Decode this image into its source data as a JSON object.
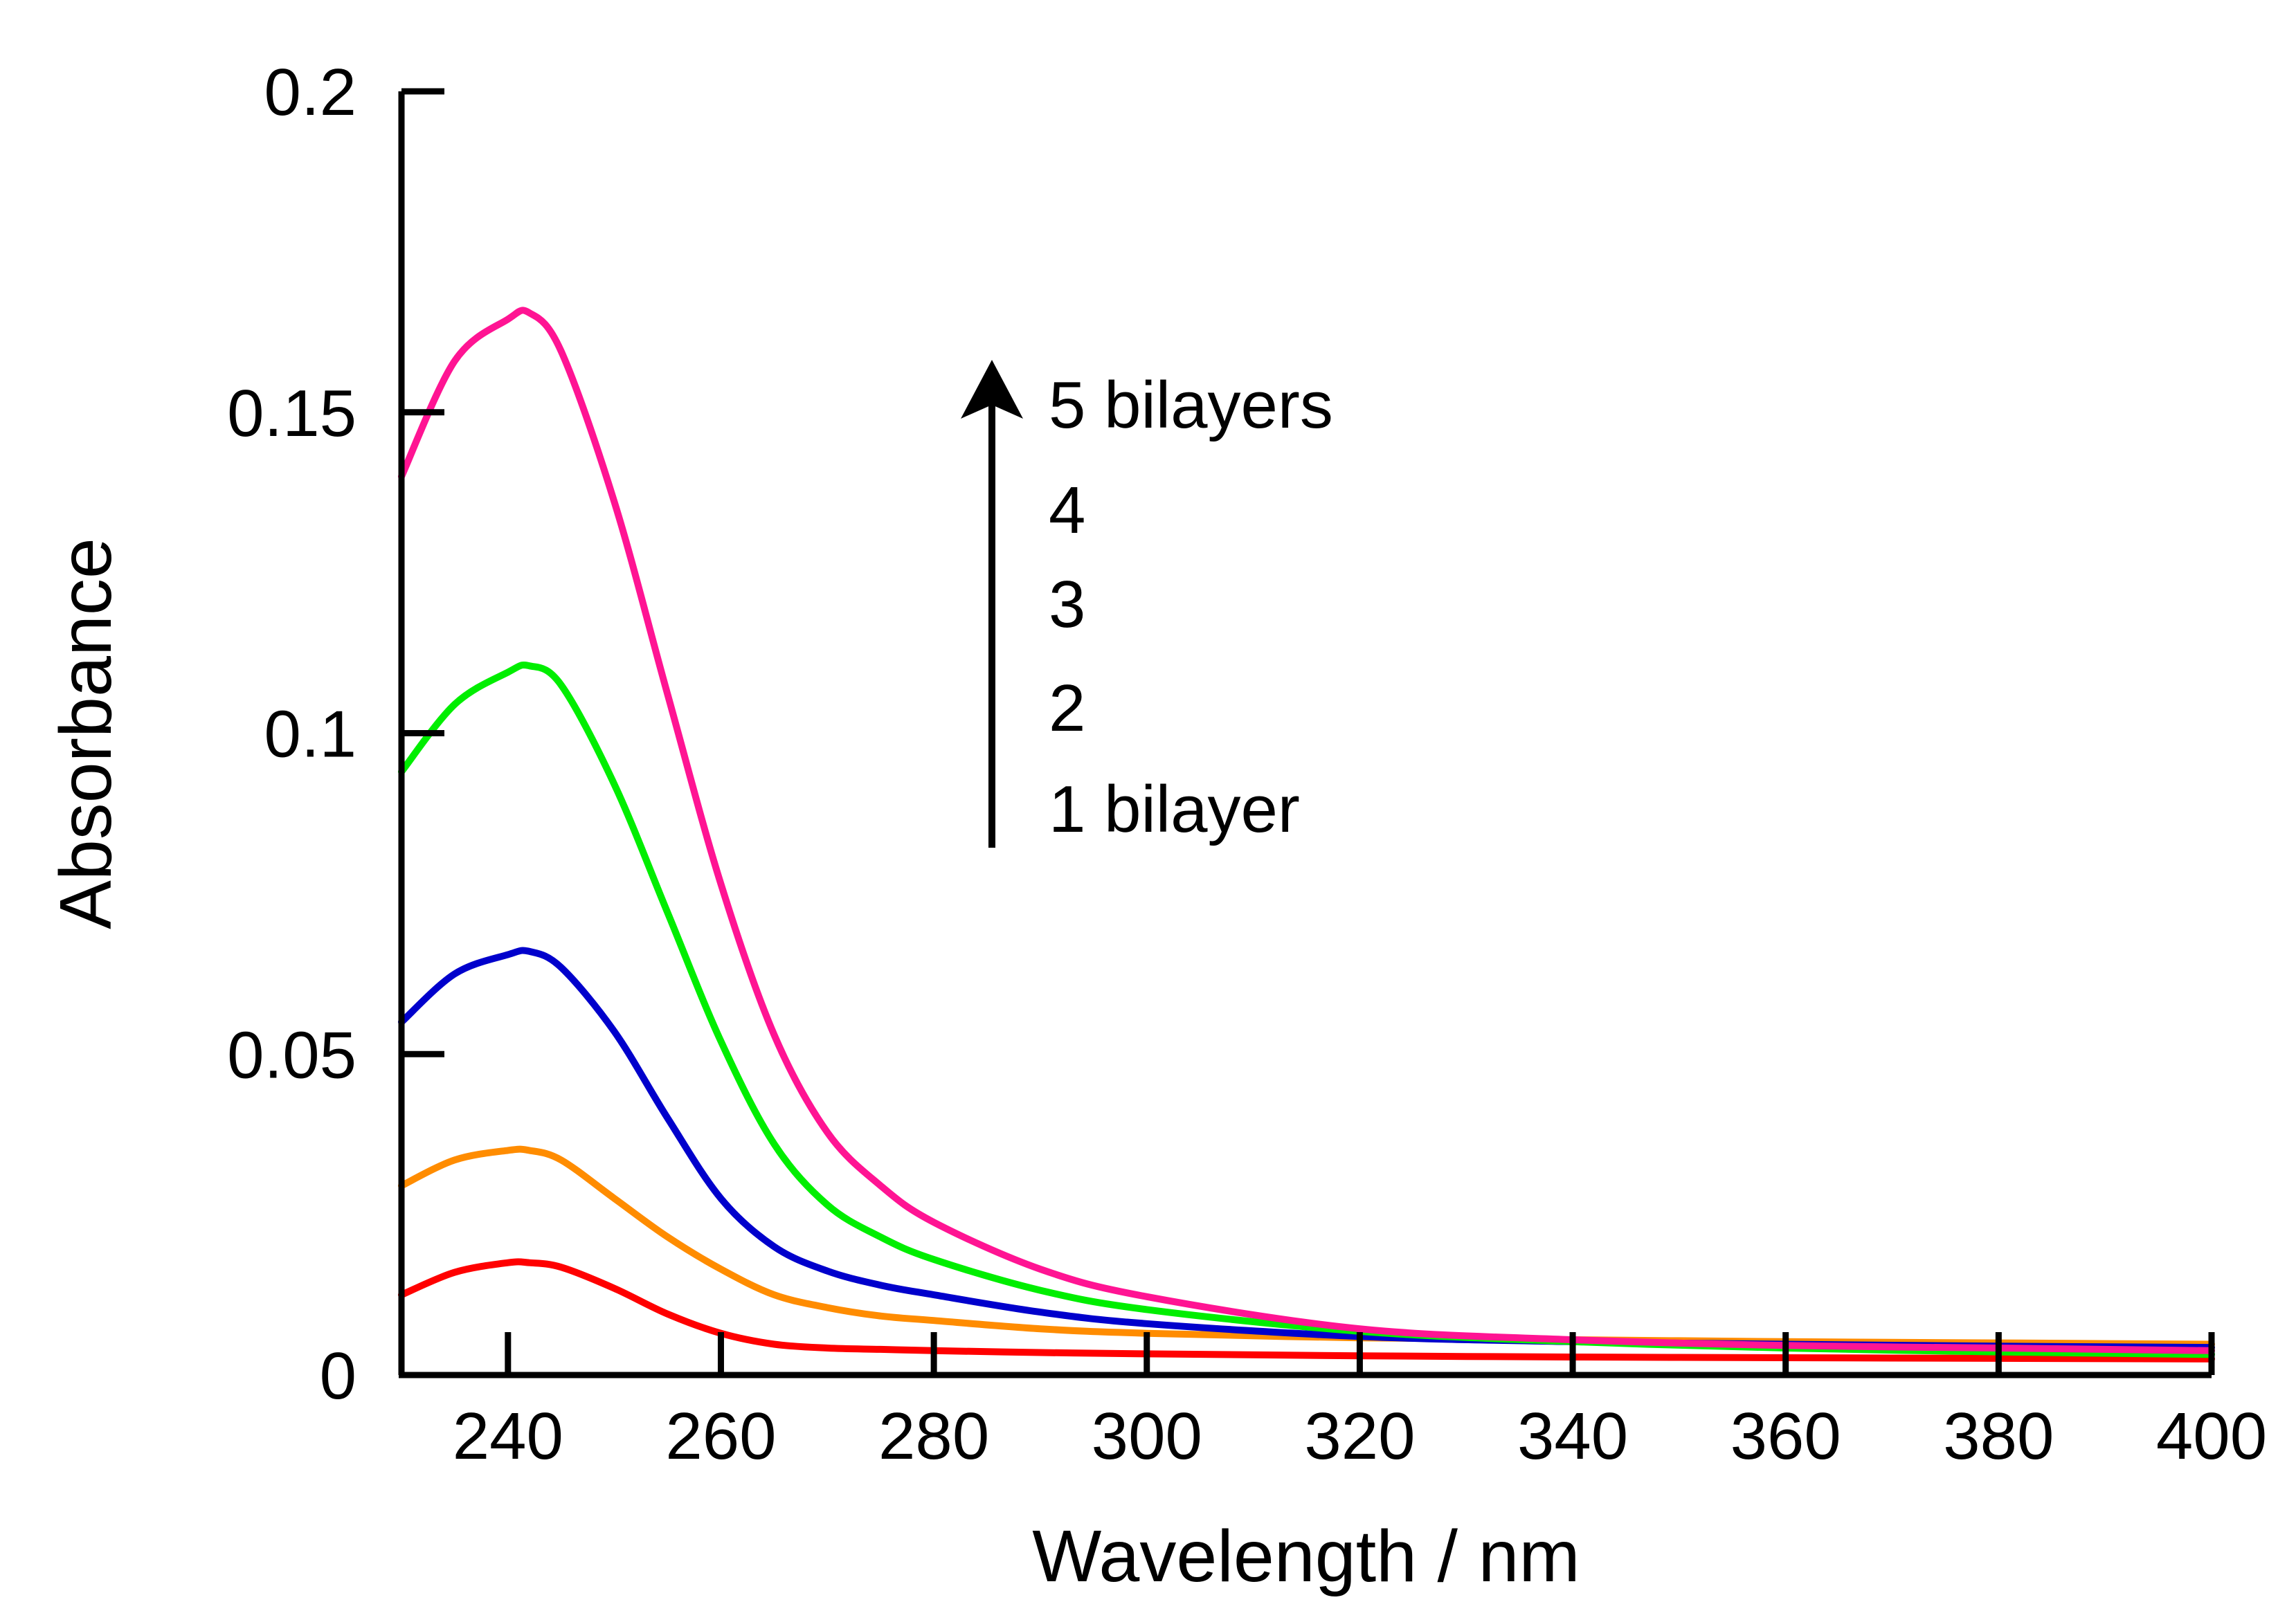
{
  "chart_data": {
    "type": "line",
    "title": "",
    "xlabel": "Wavelength / nm",
    "ylabel": "Absorbance",
    "xlim": [
      230,
      400
    ],
    "ylim": [
      0,
      0.2
    ],
    "x_ticks": [
      240,
      260,
      280,
      300,
      320,
      340,
      360,
      380,
      400
    ],
    "x_tick_labels": [
      "240",
      "260",
      "280",
      "300",
      "320",
      "340",
      "360",
      "380",
      "400"
    ],
    "y_ticks": [
      0,
      0.05,
      0.1,
      0.15,
      0.2
    ],
    "y_tick_labels": [
      "0",
      "0.05",
      "0.1",
      "0.15",
      "0.2"
    ],
    "grid": false,
    "x": [
      230,
      235,
      240,
      242,
      245,
      250,
      255,
      260,
      265,
      270,
      275,
      280,
      290,
      300,
      320,
      340,
      360,
      380,
      400
    ],
    "series": [
      {
        "name": "1 bilayer",
        "color": "#ff0000",
        "values": [
          0.0125,
          0.016,
          0.0175,
          0.0175,
          0.0168,
          0.0135,
          0.0095,
          0.0065,
          0.0048,
          0.0042,
          0.004,
          0.0038,
          0.0035,
          0.0033,
          0.003,
          0.0028,
          0.0027,
          0.0026,
          0.0025
        ]
      },
      {
        "name": "2",
        "color": "#ff8c00",
        "values": [
          0.0295,
          0.0335,
          0.035,
          0.035,
          0.0335,
          0.0275,
          0.0215,
          0.0165,
          0.0125,
          0.0105,
          0.0092,
          0.0085,
          0.0072,
          0.0065,
          0.0058,
          0.0055,
          0.0052,
          0.005,
          0.0048
        ]
      },
      {
        "name": "3",
        "color": "#0000cc",
        "values": [
          0.055,
          0.0625,
          0.0655,
          0.066,
          0.0635,
          0.0535,
          0.04,
          0.0275,
          0.02,
          0.0162,
          0.014,
          0.0125,
          0.0098,
          0.008,
          0.006,
          0.0052,
          0.0048,
          0.0045,
          0.0043
        ]
      },
      {
        "name": "4",
        "color": "#00ee00",
        "values": [
          0.094,
          0.1045,
          0.1095,
          0.1105,
          0.1075,
          0.092,
          0.072,
          0.052,
          0.036,
          0.0265,
          0.0215,
          0.018,
          0.0132,
          0.0102,
          0.0068,
          0.0052,
          0.0042,
          0.0036,
          0.0032
        ]
      },
      {
        "name": "5 bilayers",
        "color": "#ff1493",
        "values": [
          0.14,
          0.158,
          0.1645,
          0.1655,
          0.1595,
          0.136,
          0.106,
          0.0765,
          0.053,
          0.0378,
          0.0295,
          0.0238,
          0.0165,
          0.0122,
          0.0072,
          0.0055,
          0.0046,
          0.0042,
          0.0038
        ]
      }
    ],
    "legend": {
      "placement": "top-center",
      "labels": [
        "5 bilayers",
        "4",
        "3",
        "2",
        "1 bilayer"
      ],
      "colors": [
        "#ff1493",
        "#00ee00",
        "#0000cc",
        "#ff8c00",
        "#ff0000"
      ],
      "arrow": "up"
    }
  }
}
